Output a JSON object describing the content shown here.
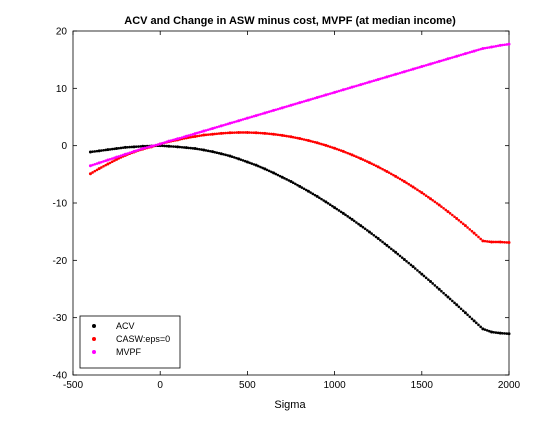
{
  "chart_data": {
    "type": "scatter",
    "title": "ACV and Change in ASW minus cost, MVPF (at median income)",
    "xlabel": "Sigma",
    "ylabel": "",
    "xlim": [
      -500,
      2000
    ],
    "ylim": [
      -40,
      20
    ],
    "xticks": [
      -500,
      0,
      500,
      1000,
      1500,
      2000
    ],
    "yticks": [
      -40,
      -30,
      -20,
      -10,
      0,
      10,
      20
    ],
    "xtick_labels": [
      "-500",
      "0",
      "500",
      "1000",
      "1500",
      "2000"
    ],
    "ytick_labels": [
      "-40",
      "-30",
      "-20",
      "-10",
      "0",
      "10",
      "20"
    ],
    "grid": false,
    "legend_position": "bottom-left",
    "x": [
      -400,
      -350,
      -300,
      -250,
      -200,
      -150,
      -100,
      -50,
      0,
      50,
      100,
      150,
      200,
      250,
      300,
      350,
      400,
      450,
      500,
      550,
      600,
      650,
      700,
      750,
      800,
      850,
      900,
      950,
      1000,
      1050,
      1100,
      1150,
      1200,
      1250,
      1300,
      1350,
      1400,
      1450,
      1500,
      1550,
      1600,
      1650,
      1700,
      1750,
      1800,
      1850,
      1900,
      1950,
      2000
    ],
    "series": [
      {
        "name": "ACV",
        "color": "#000000",
        "values": [
          -1.1,
          -0.9,
          -0.7,
          -0.5,
          -0.3,
          -0.2,
          -0.1,
          -0.05,
          0,
          -0.1,
          -0.2,
          -0.35,
          -0.5,
          -0.75,
          -1.05,
          -1.4,
          -1.8,
          -2.3,
          -2.85,
          -3.4,
          -4.05,
          -4.75,
          -5.5,
          -6.25,
          -7.1,
          -7.95,
          -8.85,
          -9.8,
          -10.8,
          -11.8,
          -12.85,
          -13.95,
          -15.05,
          -16.2,
          -17.4,
          -18.6,
          -19.85,
          -21.1,
          -22.4,
          -23.7,
          -25.05,
          -26.4,
          -27.75,
          -29.15,
          -30.55,
          -31.95,
          -32.5,
          -32.7,
          -32.8
        ]
      },
      {
        "name": "CASW:eps=0",
        "color": "#ff0000",
        "values": [
          -4.9,
          -4.0,
          -3.2,
          -2.4,
          -1.7,
          -1.1,
          -0.6,
          -0.2,
          0.3,
          0.7,
          1.0,
          1.35,
          1.6,
          1.85,
          2.0,
          2.15,
          2.25,
          2.3,
          2.3,
          2.25,
          2.15,
          2.0,
          1.8,
          1.55,
          1.25,
          0.9,
          0.5,
          0.05,
          -0.45,
          -1.0,
          -1.6,
          -2.25,
          -2.95,
          -3.7,
          -4.5,
          -5.35,
          -6.25,
          -7.2,
          -8.2,
          -9.25,
          -10.35,
          -11.5,
          -12.7,
          -13.95,
          -15.25,
          -16.6,
          -16.8,
          -16.8,
          -16.9
        ]
      },
      {
        "name": "MVPF",
        "color": "#ff00ff",
        "values": [
          -3.5,
          -3.0,
          -2.5,
          -2.0,
          -1.5,
          -1.0,
          -0.5,
          -0.1,
          0.3,
          0.8,
          1.2,
          1.65,
          2.1,
          2.55,
          3.0,
          3.45,
          3.9,
          4.35,
          4.8,
          5.25,
          5.7,
          6.15,
          6.6,
          7.05,
          7.5,
          7.95,
          8.4,
          8.85,
          9.3,
          9.75,
          10.2,
          10.65,
          11.1,
          11.55,
          12.0,
          12.45,
          12.9,
          13.35,
          13.8,
          14.25,
          14.7,
          15.15,
          15.6,
          16.05,
          16.5,
          16.95,
          17.2,
          17.5,
          17.7
        ]
      }
    ]
  }
}
